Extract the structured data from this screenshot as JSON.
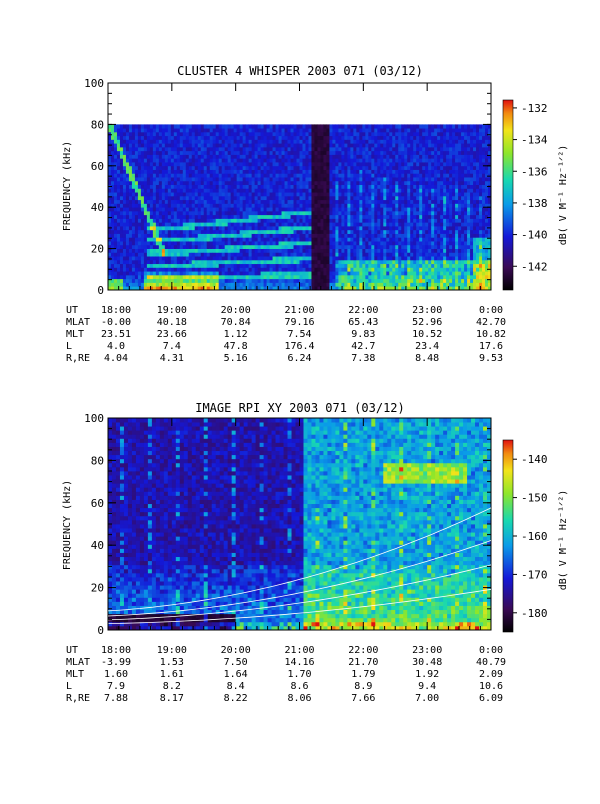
{
  "chart_data": [
    {
      "type": "heatmap",
      "title": "CLUSTER 4 WHISPER 2003 071 (03/12)",
      "ylabel": "FREQUENCY (kHz)",
      "ylim": [
        0,
        100
      ],
      "y_ticks": [
        "0",
        "20",
        "40",
        "60",
        "80",
        "100"
      ],
      "x_ticks": [
        "18:00",
        "19:00",
        "20:00",
        "21:00",
        "22:00",
        "23:00",
        "0:00"
      ],
      "colorbar": {
        "label": "dB( V M⁻¹ Hz⁻¹ᐟ²)",
        "range": [
          -143.5,
          -131.5
        ],
        "ticks": [
          "-132",
          "-134",
          "-136",
          "-138",
          "-140",
          "-142"
        ]
      },
      "data_top_khz": 80,
      "gap_hours": [
        3.15,
        3.45
      ],
      "ephemeris": [
        {
          "label": "UT",
          "values": [
            "18:00",
            "19:00",
            "20:00",
            "21:00",
            "22:00",
            "23:00",
            "0:00"
          ]
        },
        {
          "label": "MLAT",
          "values": [
            "-0.00",
            "40.18",
            "70.84",
            "79.16",
            "65.43",
            "52.96",
            "42.70"
          ]
        },
        {
          "label": "MLT",
          "values": [
            "23.51",
            "23.66",
            "1.12",
            "7.54",
            "9.83",
            "10.52",
            "10.82"
          ]
        },
        {
          "label": "L",
          "values": [
            "4.0",
            "7.4",
            "47.8",
            "176.4",
            "42.7",
            "23.4",
            "17.6"
          ]
        },
        {
          "label": "R,RE",
          "values": [
            "4.04",
            "4.31",
            "5.16",
            "6.24",
            "7.38",
            "8.48",
            "9.53"
          ]
        }
      ]
    },
    {
      "type": "heatmap",
      "title": "IMAGE RPI XY 2003 071 (03/12)",
      "ylabel": "FREQUENCY (kHz)",
      "ylim": [
        0,
        100
      ],
      "y_ticks": [
        "0",
        "20",
        "40",
        "60",
        "80",
        "100"
      ],
      "x_ticks": [
        "18:00",
        "19:00",
        "20:00",
        "21:00",
        "22:00",
        "23:00",
        "0:00"
      ],
      "colorbar": {
        "label": "dB( V M⁻¹ Hz⁻¹ᐟ²)",
        "range": [
          -185,
          -135
        ],
        "ticks": [
          "-140",
          "-150",
          "-160",
          "-170",
          "-180"
        ]
      },
      "ephemeris": [
        {
          "label": "UT",
          "values": [
            "18:00",
            "19:00",
            "20:00",
            "21:00",
            "22:00",
            "23:00",
            "0:00"
          ]
        },
        {
          "label": "MLAT",
          "values": [
            "-3.99",
            "1.53",
            "7.50",
            "14.16",
            "21.70",
            "30.48",
            "40.79"
          ]
        },
        {
          "label": "MLT",
          "values": [
            "1.60",
            "1.61",
            "1.64",
            "1.70",
            "1.79",
            "1.92",
            "2.09"
          ]
        },
        {
          "label": "L",
          "values": [
            "7.9",
            "8.2",
            "8.4",
            "8.6",
            "8.9",
            "9.4",
            "10.6"
          ]
        },
        {
          "label": "R,RE",
          "values": [
            "7.88",
            "8.17",
            "8.22",
            "8.06",
            "7.66",
            "7.00",
            "6.09"
          ]
        }
      ]
    }
  ]
}
